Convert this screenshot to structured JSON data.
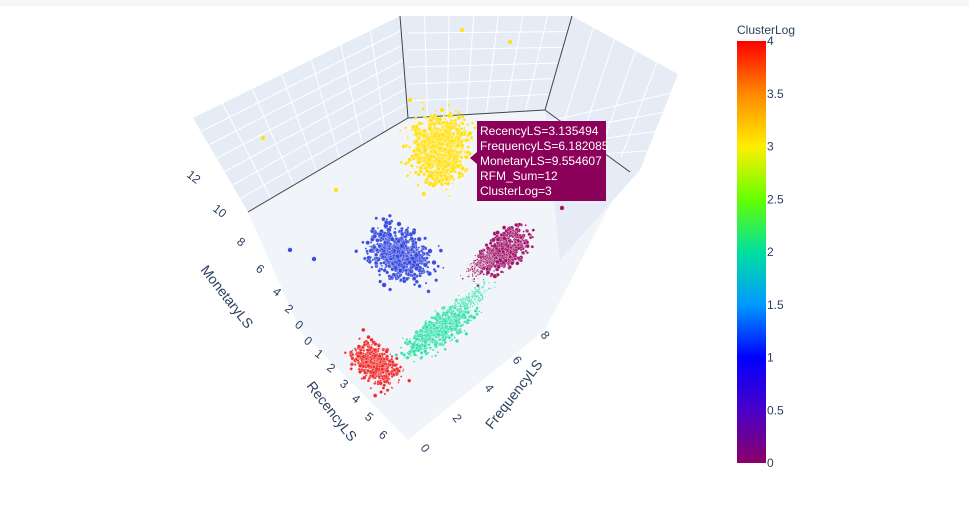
{
  "chart_data": {
    "type": "scatter3d",
    "axes": {
      "x": {
        "title": "RecencyLS",
        "ticks": [
          "0",
          "1",
          "2",
          "3",
          "4",
          "5",
          "6"
        ]
      },
      "y": {
        "title": "FrequencyLS",
        "ticks": [
          "0",
          "2",
          "4",
          "6",
          "8"
        ]
      },
      "z": {
        "title": "MonetaryLS",
        "ticks": [
          "0",
          "2",
          "4",
          "6",
          "8",
          "10",
          "12"
        ]
      }
    },
    "colorbar": {
      "title": "ClusterLog",
      "min": 0,
      "max": 4,
      "ticks": [
        "0",
        "0.5",
        "1",
        "1.5",
        "2",
        "2.5",
        "3",
        "3.5",
        "4"
      ],
      "colorscale": [
        "#8b0068",
        "#4a00c8",
        "#0000ff",
        "#0099ff",
        "#00e0a0",
        "#66ff00",
        "#ffee00",
        "#ff8800",
        "#ff0000"
      ]
    },
    "clusters": [
      {
        "value": 0,
        "color": "#a0176a"
      },
      {
        "value": 1,
        "color": "#3a4ddc"
      },
      {
        "value": 2,
        "color": "#33e0a8"
      },
      {
        "value": 3,
        "color": "#ffe11a"
      },
      {
        "value": 4,
        "color": "#ef2a2a"
      }
    ],
    "hover": {
      "lines": [
        "RecencyLS=3.135494",
        "FrequencyLS=6.182085",
        "MonetaryLS=9.554607",
        "RFM_Sum=12",
        "ClusterLog=3"
      ],
      "background": "#8b0058"
    }
  }
}
